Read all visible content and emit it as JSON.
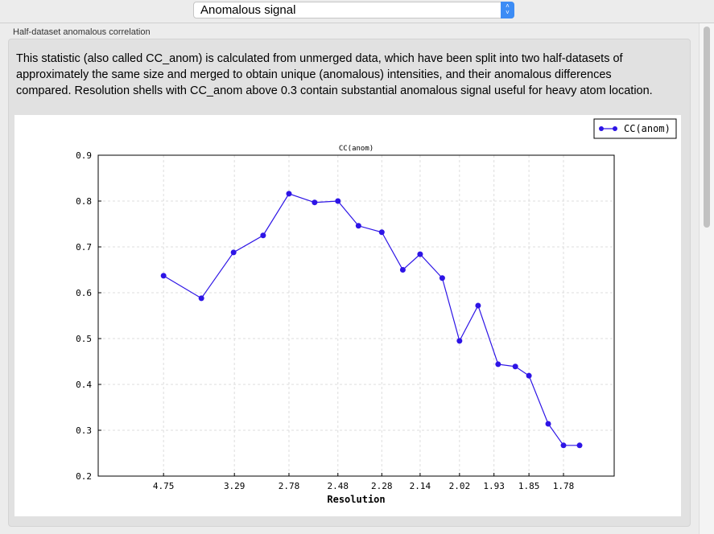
{
  "selector": {
    "value": "Anomalous signal",
    "icon": "up-down-chevron-icon"
  },
  "section": {
    "label": "Half-dataset anomalous correlation",
    "description": "This statistic (also called CC_anom) is calculated from unmerged data, which have been split into two half-datasets of approximately the same size and merged to obtain unique (anomalous) intensities, and their anomalous differences compared.  Resolution shells with CC_anom above 0.3 contain substantial anomalous signal useful for heavy atom location."
  },
  "chart_data": {
    "type": "line",
    "title": "CC(anom)",
    "xlabel": "Resolution",
    "ylabel": "",
    "x_scale": "reciprocal-square (1/d^2)",
    "xlim_resolution": [
      null,
      1.69
    ],
    "ylim": [
      0.2,
      0.9
    ],
    "yticks": [
      "0.2",
      "0.3",
      "0.4",
      "0.5",
      "0.6",
      "0.7",
      "0.8",
      "0.9"
    ],
    "xticks": [
      "4.75",
      "3.29",
      "2.78",
      "2.48",
      "2.28",
      "2.14",
      "2.02",
      "1.93",
      "1.85",
      "1.78"
    ],
    "grid": true,
    "legend": "top-right",
    "color": "#2d14e6",
    "series": [
      {
        "name": "CC(anom)",
        "x": [
          4.75,
          3.78,
          3.3,
          2.99,
          2.78,
          2.61,
          2.48,
          2.38,
          2.28,
          2.2,
          2.14,
          2.07,
          2.02,
          1.97,
          1.92,
          1.88,
          1.85,
          1.81,
          1.78,
          1.75
        ],
        "y": [
          0.637,
          0.588,
          0.688,
          0.725,
          0.816,
          0.797,
          0.8,
          0.746,
          0.732,
          0.65,
          0.684,
          0.632,
          0.495,
          0.572,
          0.444,
          0.439,
          0.419,
          0.314,
          0.267,
          0.267
        ]
      }
    ]
  }
}
